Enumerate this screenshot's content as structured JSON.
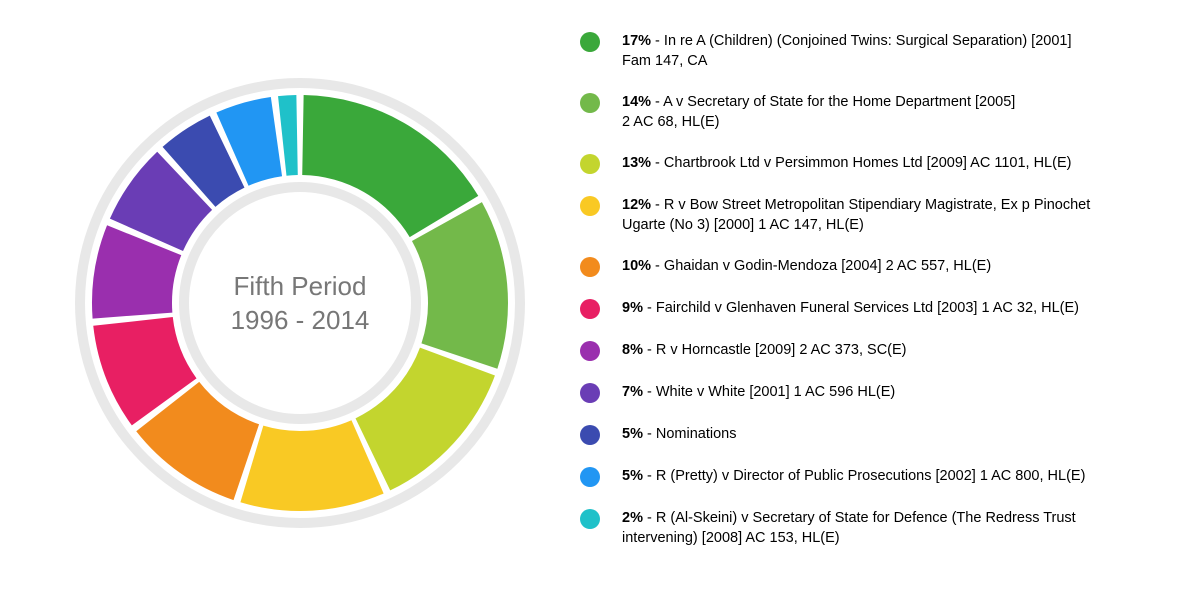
{
  "chart": {
    "type": "donut",
    "center_title_line1": "Fifth Period",
    "center_title_line2": "1996 - 2014",
    "center_title_color": "#777777",
    "center_title_fontsize": 26,
    "background_color": "#ffffff",
    "track_color": "#e8e8e8",
    "outer_radius": 208,
    "inner_radius": 128,
    "gap_degrees": 2,
    "start_angle_deg": -90,
    "slices": [
      {
        "percent": 17,
        "color": "#3aa83a",
        "label": "In re A (Children) (Conjoined Twins: Surgical Separation) [2001]",
        "label2": "Fam 147, CA"
      },
      {
        "percent": 14,
        "color": "#73b94a",
        "label": "A v Secretary of State for the Home Department [2005]",
        "label2": "2 AC 68, HL(E)"
      },
      {
        "percent": 13,
        "color": "#c3d52e",
        "label": "Chartbrook Ltd v Persimmon Homes Ltd [2009] AC 1101, HL(E)"
      },
      {
        "percent": 12,
        "color": "#f9c924",
        "label": "R v Bow Street Metropolitan Stipendiary Magistrate, Ex p Pinochet",
        "label2": "Ugarte (No 3) [2000] 1 AC 147, HL(E)"
      },
      {
        "percent": 10,
        "color": "#f28b1d",
        "label": "Ghaidan v Godin-Mendoza [2004] 2 AC 557, HL(E)"
      },
      {
        "percent": 9,
        "color": "#e81f63",
        "label": "Fairchild v Glenhaven Funeral Services Ltd [2003] 1 AC 32, HL(E)"
      },
      {
        "percent": 8,
        "color": "#9a2fae",
        "label": "R v Horncastle [2009] 2 AC 373, SC(E)"
      },
      {
        "percent": 7,
        "color": "#6a3db5",
        "label": "White v White [2001] 1 AC 596 HL(E)"
      },
      {
        "percent": 5,
        "color": "#3b4bb0",
        "label": "Nominations"
      },
      {
        "percent": 5,
        "color": "#2196f3",
        "label": "R (Pretty) v Director of Public Prosecutions [2002] 1 AC 800, HL(E)"
      },
      {
        "percent": 2,
        "color": "#1fc1c9",
        "label": "R (Al-Skeini) v Secretary of State for Defence (The Redress Trust",
        "label2": "intervening) [2008] AC 153, HL(E)"
      }
    ]
  }
}
